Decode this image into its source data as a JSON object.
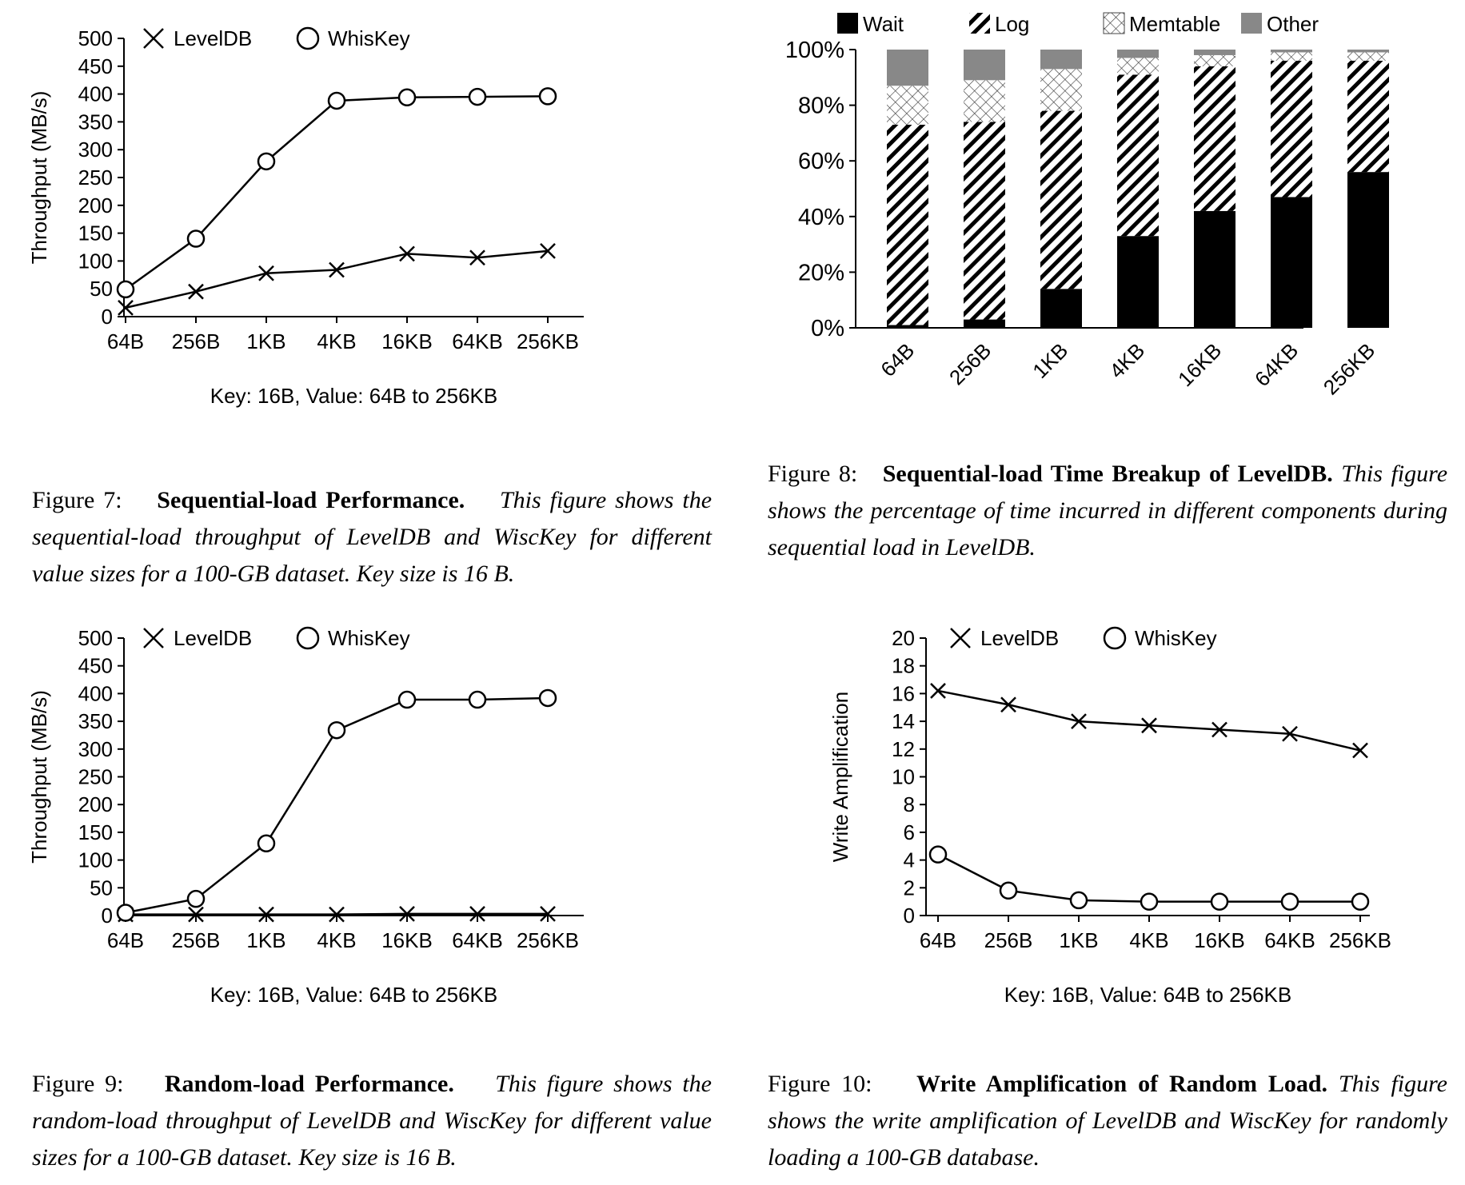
{
  "figures": {
    "fig7": {
      "caption_lead": "Figure 7:",
      "caption_title": "Sequential-load Performance.",
      "caption_desc": "This figure shows the sequential-load throughput of LevelDB and WiscKey for different value sizes for a 100-GB dataset. Key size is 16 B.",
      "xlabel": "Key: 16B, Value: 64B to 256KB",
      "ylabel": "Throughput (MB/s)"
    },
    "fig8": {
      "caption_lead": "Figure 8:",
      "caption_title": "Sequential-load Time Breakup of LevelDB.",
      "caption_desc": "This figure shows the percentage of time incurred in different components during sequential load in LevelDB."
    },
    "fig9": {
      "caption_lead": "Figure 9:",
      "caption_title": "Random-load Performance.",
      "caption_desc": "This figure shows the random-load throughput of LevelDB and WiscKey for different value sizes for a 100-GB dataset. Key size is 16 B.",
      "xlabel": "Key: 16B, Value: 64B to 256KB",
      "ylabel": "Throughput (MB/s)"
    },
    "fig10": {
      "caption_lead": "Figure 10:",
      "caption_title": "Write Amplification of Random Load.",
      "caption_desc": "This figure shows the write amplification of LevelDB and WiscKey for randomly loading a 100-GB database.",
      "xlabel": "Key: 16B, Value: 64B to 256KB",
      "ylabel": "Write Amplification"
    }
  },
  "chart_data": [
    {
      "type": "line",
      "categories": [
        "64B",
        "256B",
        "1KB",
        "4KB",
        "16KB",
        "64KB",
        "256KB"
      ],
      "series": [
        {
          "name": "LevelDB",
          "marker": "x",
          "values": [
            16,
            45,
            78,
            84,
            113,
            106,
            118
          ]
        },
        {
          "name": "WhisKey",
          "marker": "o",
          "values": [
            49,
            140,
            279,
            388,
            394,
            395,
            396
          ]
        }
      ],
      "xlabel": "Key: 16B, Value: 64B to 256KB",
      "ylabel": "Throughput (MB/s)",
      "ylim": [
        0,
        500
      ],
      "yticks": [
        0,
        50,
        100,
        150,
        200,
        250,
        300,
        350,
        400,
        450,
        500
      ],
      "legend": "top"
    },
    {
      "type": "bar",
      "stacked": true,
      "categories": [
        "64B",
        "256B",
        "1KB",
        "4KB",
        "16KB",
        "64KB",
        "256KB"
      ],
      "series": [
        {
          "name": "Wait",
          "pattern": "solid-black",
          "values": [
            1,
            3,
            14,
            33,
            42,
            47,
            56
          ]
        },
        {
          "name": "Log",
          "pattern": "diagonal-hatch",
          "values": [
            72,
            71,
            64,
            58,
            52,
            49,
            40
          ]
        },
        {
          "name": "Memtable",
          "pattern": "crosshatch",
          "values": [
            14,
            15,
            15,
            6,
            4,
            3,
            3
          ]
        },
        {
          "name": "Other",
          "pattern": "solid-gray",
          "values": [
            13,
            11,
            7,
            3,
            2,
            1,
            1
          ]
        }
      ],
      "ylim": [
        0,
        100
      ],
      "yticks": [
        "0%",
        "20%",
        "40%",
        "60%",
        "80%",
        "100%"
      ],
      "legend": "top"
    },
    {
      "type": "line",
      "categories": [
        "64B",
        "256B",
        "1KB",
        "4KB",
        "16KB",
        "64KB",
        "256KB"
      ],
      "series": [
        {
          "name": "LevelDB",
          "marker": "x",
          "values": [
            2,
            2,
            2,
            2,
            3,
            3,
            3
          ]
        },
        {
          "name": "WhisKey",
          "marker": "o",
          "values": [
            5,
            30,
            130,
            334,
            389,
            389,
            392
          ]
        }
      ],
      "xlabel": "Key: 16B, Value: 64B to 256KB",
      "ylabel": "Throughput (MB/s)",
      "ylim": [
        0,
        500
      ],
      "yticks": [
        0,
        50,
        100,
        150,
        200,
        250,
        300,
        350,
        400,
        450,
        500
      ],
      "legend": "top"
    },
    {
      "type": "line",
      "categories": [
        "64B",
        "256B",
        "1KB",
        "4KB",
        "16KB",
        "64KB",
        "256KB"
      ],
      "series": [
        {
          "name": "LevelDB",
          "marker": "x",
          "values": [
            16.2,
            15.2,
            14.0,
            13.7,
            13.4,
            13.1,
            11.9
          ]
        },
        {
          "name": "WhisKey",
          "marker": "o",
          "values": [
            4.4,
            1.8,
            1.1,
            1.0,
            1.0,
            1.0,
            1.0
          ]
        }
      ],
      "xlabel": "Key: 16B, Value: 64B to 256KB",
      "ylabel": "Write Amplification",
      "ylim": [
        0,
        20
      ],
      "yticks": [
        0,
        2,
        4,
        6,
        8,
        10,
        12,
        14,
        16,
        18,
        20
      ],
      "legend": "top"
    }
  ]
}
